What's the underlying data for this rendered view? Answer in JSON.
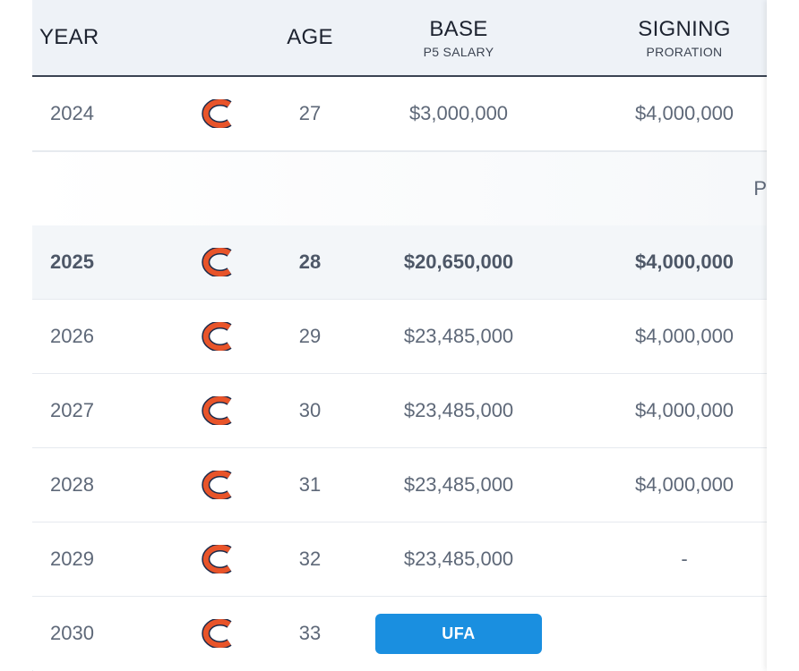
{
  "header": {
    "year": "YEAR",
    "age": "AGE",
    "base": "BASE",
    "base_sub": "P5 SALARY",
    "signing": "SIGNING",
    "signing_sub": "PRORATION"
  },
  "rows": [
    {
      "year": "2024",
      "team_icon": "bears-c-logo-icon",
      "age": "27",
      "base": "$3,000,000",
      "signing": "$4,000,000"
    },
    {
      "year": "2025",
      "team_icon": "bears-c-logo-icon",
      "age": "28",
      "base": "$20,650,000",
      "signing": "$4,000,000"
    },
    {
      "year": "2026",
      "team_icon": "bears-c-logo-icon",
      "age": "29",
      "base": "$23,485,000",
      "signing": "$4,000,000"
    },
    {
      "year": "2027",
      "team_icon": "bears-c-logo-icon",
      "age": "30",
      "base": "$23,485,000",
      "signing": "$4,000,000"
    },
    {
      "year": "2028",
      "team_icon": "bears-c-logo-icon",
      "age": "31",
      "base": "$23,485,000",
      "signing": "$4,000,000"
    },
    {
      "year": "2029",
      "team_icon": "bears-c-logo-icon",
      "age": "32",
      "base": "$23,485,000",
      "signing": "-"
    },
    {
      "year": "2030",
      "team_icon": "bears-c-logo-icon",
      "age": "33",
      "status_badge": "UFA",
      "signing": ""
    }
  ],
  "spacer_peek": "P",
  "colors": {
    "header_bg": "#eef2f7",
    "header_border": "#3a4352",
    "highlight_row_bg": "#f3f6f9",
    "text": "#5e6878",
    "ufa_badge": "#1a8fe0",
    "logo_orange": "#e8542a",
    "logo_navy": "#1b2a4a"
  }
}
